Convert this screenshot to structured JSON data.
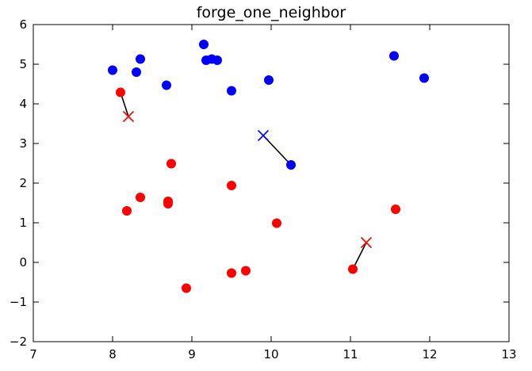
{
  "chart_data": {
    "type": "scatter",
    "title": "forge_one_neighbor",
    "xlabel": "",
    "ylabel": "",
    "xlim": [
      7,
      13
    ],
    "ylim": [
      -2,
      6
    ],
    "xticks": [
      7,
      8,
      9,
      10,
      11,
      12,
      13
    ],
    "yticks": [
      -2,
      -1,
      0,
      1,
      2,
      3,
      4,
      5,
      6
    ],
    "grid": false,
    "colors": {
      "blue": "#0000ff",
      "red": "#ff0000",
      "line": "#000000"
    },
    "series": [
      {
        "marker": "circle",
        "color": "blue",
        "points": [
          [
            8.0,
            4.85
          ],
          [
            8.3,
            4.8
          ],
          [
            8.35,
            5.13
          ],
          [
            8.68,
            4.47
          ],
          [
            9.15,
            5.5
          ],
          [
            9.18,
            5.1
          ],
          [
            9.25,
            5.13
          ],
          [
            9.32,
            5.1
          ],
          [
            9.5,
            4.33
          ],
          [
            9.97,
            4.6
          ],
          [
            10.25,
            2.46
          ],
          [
            11.55,
            5.21
          ],
          [
            11.93,
            4.65
          ]
        ]
      },
      {
        "marker": "circle",
        "color": "red",
        "points": [
          [
            8.1,
            4.29
          ],
          [
            8.18,
            1.3
          ],
          [
            8.35,
            1.64
          ],
          [
            8.7,
            1.54
          ],
          [
            8.7,
            1.48
          ],
          [
            8.74,
            2.49
          ],
          [
            8.93,
            -0.65
          ],
          [
            9.5,
            1.94
          ],
          [
            9.5,
            -0.27
          ],
          [
            9.68,
            -0.21
          ],
          [
            10.07,
            0.99
          ],
          [
            11.03,
            -0.17
          ],
          [
            11.57,
            1.34
          ]
        ]
      },
      {
        "marker": "x",
        "color": "blue",
        "points": [
          [
            9.9,
            3.2
          ]
        ]
      },
      {
        "marker": "x",
        "color": "red",
        "points": [
          [
            8.2,
            3.68
          ],
          [
            11.2,
            0.5
          ]
        ]
      }
    ],
    "neighbor_links": [
      {
        "from": [
          8.2,
          3.68
        ],
        "to": [
          8.1,
          4.29
        ]
      },
      {
        "from": [
          9.9,
          3.2
        ],
        "to": [
          10.25,
          2.46
        ]
      },
      {
        "from": [
          11.2,
          0.5
        ],
        "to": [
          11.03,
          -0.17
        ]
      }
    ]
  }
}
